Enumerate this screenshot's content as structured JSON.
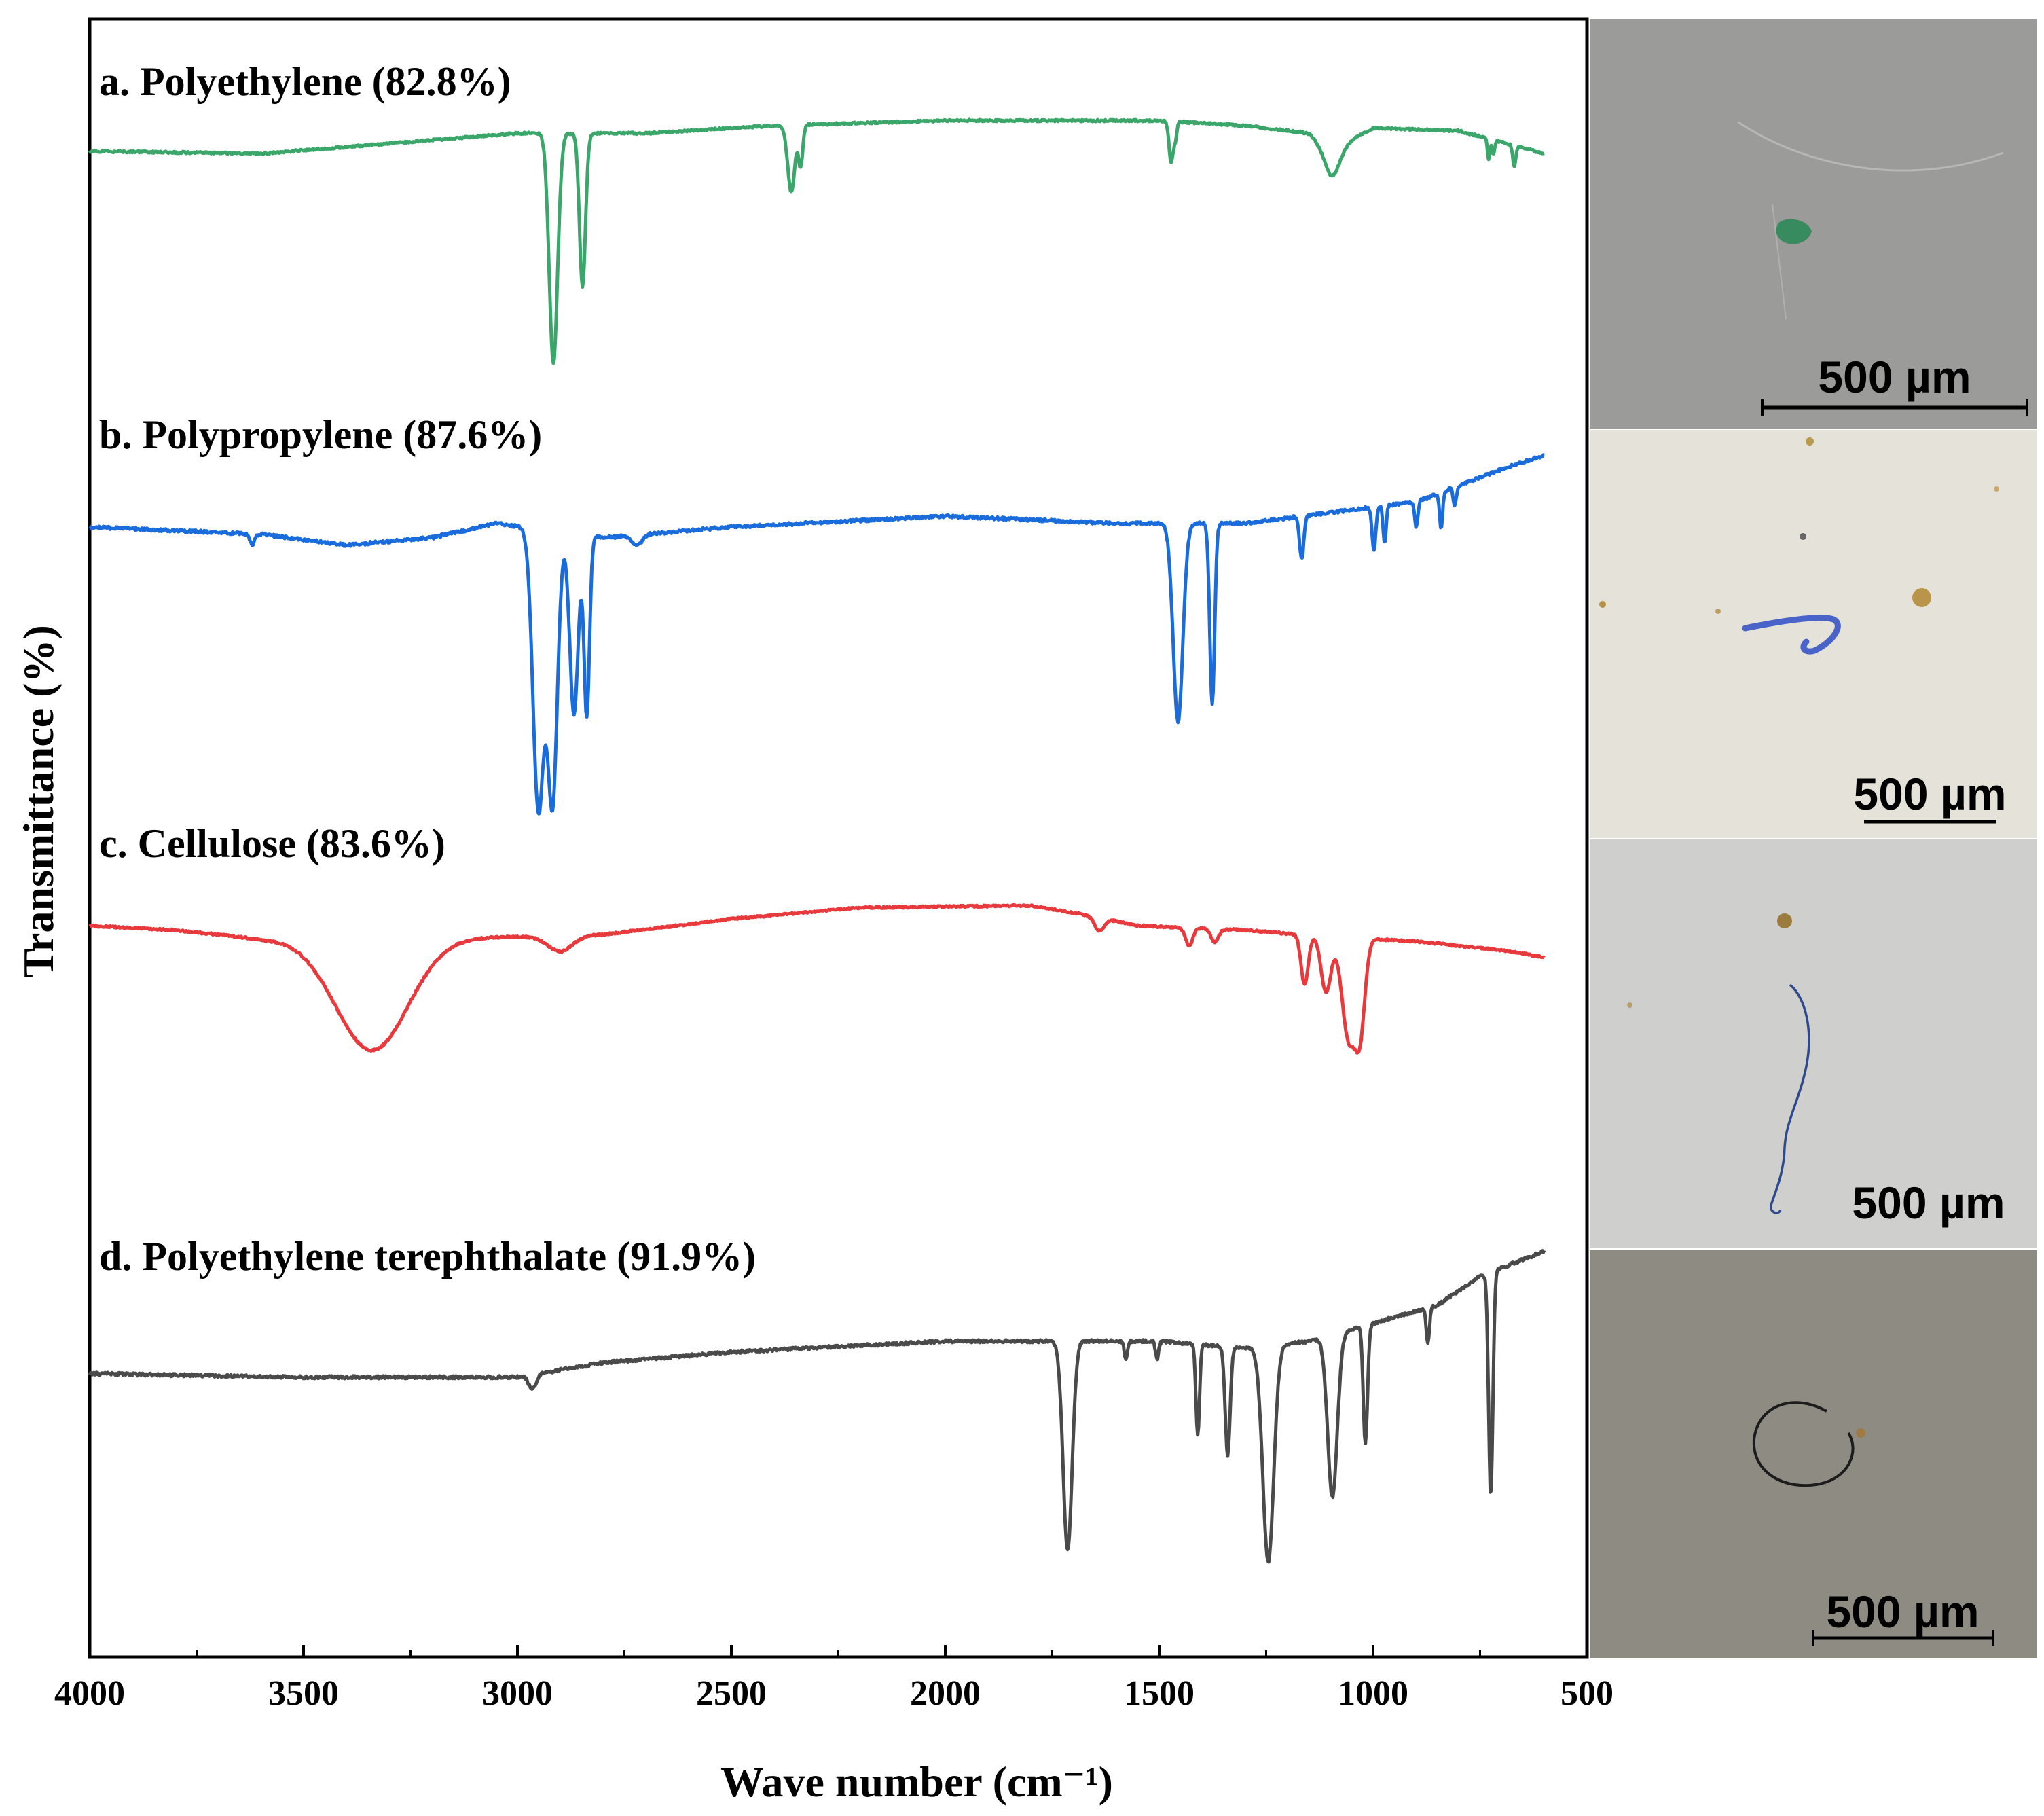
{
  "chart_data": {
    "type": "line",
    "title": "",
    "xlabel": "Wave number (cm⁻¹)",
    "ylabel": "Transmittance (%)",
    "xlim": [
      4000,
      500
    ],
    "x_ticks": [
      4000,
      3500,
      3000,
      2500,
      2000,
      1500,
      1000,
      500
    ],
    "x_tick_labels": [
      "4000",
      "3500",
      "3000",
      "2500",
      "2000",
      "1500",
      "1000",
      "500"
    ],
    "y_units": "relative transmittance (normalized 0-1 per series, offset vertically)",
    "series": [
      {
        "name": "a. Polyethylene (82.8%)",
        "color": "#3aa66a",
        "baseline": [
          [
            4000,
            0.86
          ],
          [
            3600,
            0.85
          ],
          [
            3300,
            0.89
          ],
          [
            3000,
            0.93
          ],
          [
            2700,
            0.93
          ],
          [
            2400,
            0.96
          ],
          [
            2000,
            0.98
          ],
          [
            1500,
            0.98
          ],
          [
            1300,
            0.96
          ],
          [
            1150,
            0.93
          ],
          [
            1100,
            0.86
          ],
          [
            1000,
            0.95
          ],
          [
            800,
            0.94
          ],
          [
            600,
            0.85
          ]
        ],
        "peaks": [
          {
            "x": 2916,
            "depth": 0.9,
            "width": 14
          },
          {
            "x": 2848,
            "depth": 0.6,
            "width": 10
          },
          {
            "x": 2360,
            "depth": 0.26,
            "width": 12
          },
          {
            "x": 2338,
            "depth": 0.16,
            "width": 7
          },
          {
            "x": 1472,
            "depth": 0.16,
            "width": 7
          },
          {
            "x": 1462,
            "depth": 0.06,
            "width": 5
          },
          {
            "x": 1095,
            "depth": 0.1,
            "width": 26
          },
          {
            "x": 730,
            "depth": 0.08,
            "width": 4
          },
          {
            "x": 719,
            "depth": 0.06,
            "width": 4
          },
          {
            "x": 670,
            "depth": 0.08,
            "width": 5
          }
        ]
      },
      {
        "name": "b. Polypropylene (87.6%)",
        "color": "#1a6cdc",
        "baseline": [
          [
            4000,
            0.8
          ],
          [
            3600,
            0.78
          ],
          [
            3400,
            0.75
          ],
          [
            3200,
            0.77
          ],
          [
            3050,
            0.81
          ],
          [
            2800,
            0.77
          ],
          [
            2500,
            0.8
          ],
          [
            2000,
            0.83
          ],
          [
            1800,
            0.82
          ],
          [
            1600,
            0.81
          ],
          [
            1300,
            0.81
          ],
          [
            1100,
            0.84
          ],
          [
            900,
            0.87
          ],
          [
            700,
            0.96
          ],
          [
            600,
            1.0
          ]
        ],
        "peaks": [
          {
            "x": 2951,
            "depth": 0.78,
            "width": 18
          },
          {
            "x": 2918,
            "depth": 0.75,
            "width": 16
          },
          {
            "x": 2868,
            "depth": 0.5,
            "width": 14
          },
          {
            "x": 2838,
            "depth": 0.5,
            "width": 9
          },
          {
            "x": 1456,
            "depth": 0.55,
            "width": 16
          },
          {
            "x": 1376,
            "depth": 0.5,
            "width": 8
          },
          {
            "x": 1167,
            "depth": 0.12,
            "width": 7
          },
          {
            "x": 998,
            "depth": 0.12,
            "width": 6
          },
          {
            "x": 973,
            "depth": 0.1,
            "width": 5
          },
          {
            "x": 899,
            "depth": 0.07,
            "width": 5
          },
          {
            "x": 841,
            "depth": 0.1,
            "width": 5
          },
          {
            "x": 809,
            "depth": 0.05,
            "width": 5
          },
          {
            "x": 3620,
            "depth": 0.03,
            "width": 8
          },
          {
            "x": 2720,
            "depth": 0.03,
            "width": 15
          }
        ]
      },
      {
        "name": "c. Cellulose (83.6%)",
        "color": "#e8393c",
        "baseline": [
          [
            4000,
            0.9
          ],
          [
            3800,
            0.88
          ],
          [
            3600,
            0.84
          ],
          [
            3000,
            0.85
          ],
          [
            2800,
            0.86
          ],
          [
            2500,
            0.93
          ],
          [
            2200,
            0.98
          ],
          [
            1800,
            0.99
          ],
          [
            1650,
            0.94
          ],
          [
            1550,
            0.9
          ],
          [
            1300,
            0.88
          ],
          [
            1100,
            0.85
          ],
          [
            900,
            0.83
          ],
          [
            700,
            0.79
          ],
          [
            600,
            0.76
          ]
        ],
        "peaks": [
          {
            "x": 3340,
            "depth": 0.5,
            "width": 120
          },
          {
            "x": 2900,
            "depth": 0.07,
            "width": 40
          },
          {
            "x": 1640,
            "depth": 0.06,
            "width": 15
          },
          {
            "x": 1430,
            "depth": 0.08,
            "width": 12
          },
          {
            "x": 1370,
            "depth": 0.06,
            "width": 12
          },
          {
            "x": 1160,
            "depth": 0.22,
            "width": 12
          },
          {
            "x": 1110,
            "depth": 0.25,
            "width": 16
          },
          {
            "x": 1057,
            "depth": 0.45,
            "width": 22
          },
          {
            "x": 1030,
            "depth": 0.38,
            "width": 16
          }
        ]
      },
      {
        "name": "d. Polyethylene terephthalate (91.9%)",
        "color": "#4a4a4a",
        "baseline": [
          [
            4000,
            0.58
          ],
          [
            3500,
            0.57
          ],
          [
            3000,
            0.57
          ],
          [
            2800,
            0.61
          ],
          [
            2500,
            0.64
          ],
          [
            2000,
            0.67
          ],
          [
            1780,
            0.67
          ],
          [
            1500,
            0.67
          ],
          [
            1300,
            0.65
          ],
          [
            1150,
            0.67
          ],
          [
            1000,
            0.72
          ],
          [
            850,
            0.77
          ],
          [
            750,
            0.85
          ],
          [
            600,
            0.92
          ]
        ],
        "peaks": [
          {
            "x": 2965,
            "depth": 0.04,
            "width": 12
          },
          {
            "x": 1714,
            "depth": 0.58,
            "width": 15
          },
          {
            "x": 1578,
            "depth": 0.05,
            "width": 5
          },
          {
            "x": 1505,
            "depth": 0.05,
            "width": 5
          },
          {
            "x": 1410,
            "depth": 0.25,
            "width": 6
          },
          {
            "x": 1340,
            "depth": 0.3,
            "width": 8
          },
          {
            "x": 1245,
            "depth": 0.6,
            "width": 18
          },
          {
            "x": 1095,
            "depth": 0.45,
            "width": 16
          },
          {
            "x": 1018,
            "depth": 0.33,
            "width": 7
          },
          {
            "x": 872,
            "depth": 0.1,
            "width": 5
          },
          {
            "x": 725,
            "depth": 0.62,
            "width": 7
          }
        ]
      }
    ],
    "micrographs": [
      {
        "label": "500 µm",
        "panel": "a",
        "background": "#9b9b99",
        "particle_color": "#2e8a58",
        "particle": "blob"
      },
      {
        "label": "500 µm",
        "panel": "b",
        "background": "#e4e2d9",
        "particle_color": "#4a63c9",
        "particle": "hook-fiber"
      },
      {
        "label": "500 µm",
        "panel": "c",
        "background": "#cfcfcd",
        "particle_color": "#2f4a8c",
        "particle": "long-fiber"
      },
      {
        "label": "500 µm",
        "panel": "d",
        "background": "#8e8b82",
        "particle_color": "#1c1c1c",
        "particle": "loop-fiber"
      }
    ]
  }
}
